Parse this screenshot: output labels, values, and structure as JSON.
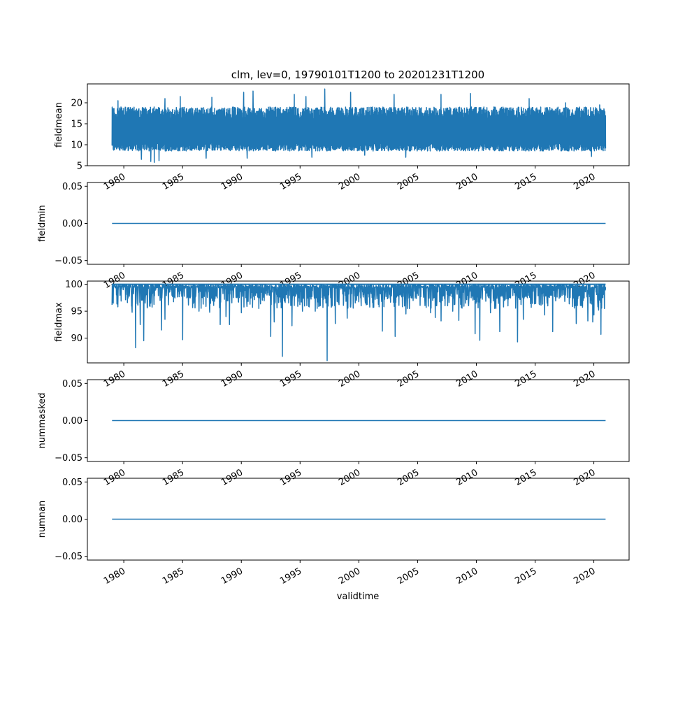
{
  "figure": {
    "title": "clm, lev=0, 19790101T1200 to 20201231T1200",
    "xlabel": "validtime",
    "line_color": "#1f77b4"
  },
  "chart_data": [
    {
      "type": "line",
      "ylabel": "fieldmean",
      "xlim": [
        1976.9,
        2023.0
      ],
      "ylim": [
        5,
        24.5
      ],
      "yticks": [
        5,
        10,
        15,
        20
      ],
      "yticklabels": [
        "5",
        "10",
        "15",
        "20"
      ],
      "series": [
        {
          "x_range": [
            1979.0,
            2021.0
          ],
          "typical_low": [
            8.5,
            10.5
          ],
          "typical_high": [
            16.0,
            19.0
          ],
          "minima": [
            {
              "x": 1981.5,
              "y": 6.5
            },
            {
              "x": 1982.3,
              "y": 6.0
            },
            {
              "x": 1982.6,
              "y": 5.8
            },
            {
              "x": 1983.0,
              "y": 6.2
            },
            {
              "x": 1987.0,
              "y": 6.8
            },
            {
              "x": 1990.5,
              "y": 6.8
            },
            {
              "x": 1996.0,
              "y": 7.0
            },
            {
              "x": 2000.5,
              "y": 7.5
            },
            {
              "x": 2004.0,
              "y": 7.0
            },
            {
              "x": 2009.5,
              "y": 6.8
            },
            {
              "x": 2014.5,
              "y": 7.0
            },
            {
              "x": 2019.8,
              "y": 7.2
            }
          ],
          "maxima": [
            {
              "x": 1979.5,
              "y": 20.5
            },
            {
              "x": 1983.5,
              "y": 21.0
            },
            {
              "x": 1984.8,
              "y": 21.5
            },
            {
              "x": 1987.5,
              "y": 21.3
            },
            {
              "x": 1990.2,
              "y": 22.5
            },
            {
              "x": 1991.0,
              "y": 22.8
            },
            {
              "x": 1994.5,
              "y": 22.0
            },
            {
              "x": 1995.5,
              "y": 21.5
            },
            {
              "x": 1997.1,
              "y": 23.3
            },
            {
              "x": 1999.3,
              "y": 22.5
            },
            {
              "x": 2003.0,
              "y": 22.0
            },
            {
              "x": 2007.0,
              "y": 22.0
            },
            {
              "x": 2009.5,
              "y": 22.2
            },
            {
              "x": 2014.5,
              "y": 21.0
            },
            {
              "x": 2017.6,
              "y": 20.0
            },
            {
              "x": 2020.5,
              "y": 19.5
            }
          ]
        }
      ]
    },
    {
      "type": "line",
      "ylabel": "fieldmin",
      "xlim": [
        1976.9,
        2023.0
      ],
      "ylim": [
        -0.055,
        0.055
      ],
      "yticks": [
        -0.05,
        0.0,
        0.05
      ],
      "yticklabels": [
        "−0.05",
        "0.00",
        "0.05"
      ],
      "series": [
        {
          "x_range": [
            1979.0,
            2021.0
          ],
          "constant": 0.0
        }
      ]
    },
    {
      "type": "line",
      "ylabel": "fieldmax",
      "xlim": [
        1976.9,
        2023.0
      ],
      "ylim": [
        85.4,
        100.6
      ],
      "yticks": [
        90,
        95,
        100
      ],
      "yticklabels": [
        "90",
        "95",
        "100"
      ],
      "series": [
        {
          "x_range": [
            1979.0,
            2021.0
          ],
          "baseline": 100.0,
          "dips": [
            {
              "x": 1979.1,
              "y": 96.5
            },
            {
              "x": 1979.5,
              "y": 95.8
            },
            {
              "x": 1980.3,
              "y": 96.6
            },
            {
              "x": 1980.7,
              "y": 94.8
            },
            {
              "x": 1981.0,
              "y": 88.2
            },
            {
              "x": 1981.4,
              "y": 92.5
            },
            {
              "x": 1981.7,
              "y": 89.5
            },
            {
              "x": 1982.3,
              "y": 96.5
            },
            {
              "x": 1983.2,
              "y": 91.5
            },
            {
              "x": 1983.5,
              "y": 93.5
            },
            {
              "x": 1985.0,
              "y": 89.7
            },
            {
              "x": 1986.4,
              "y": 95.0
            },
            {
              "x": 1987.3,
              "y": 94.8
            },
            {
              "x": 1988.2,
              "y": 92.5
            },
            {
              "x": 1988.7,
              "y": 94.0
            },
            {
              "x": 1989.0,
              "y": 92.5
            },
            {
              "x": 1990.0,
              "y": 94.7
            },
            {
              "x": 1991.5,
              "y": 95.5
            },
            {
              "x": 1992.5,
              "y": 90.3
            },
            {
              "x": 1992.8,
              "y": 93.0
            },
            {
              "x": 1993.5,
              "y": 86.6
            },
            {
              "x": 1994.3,
              "y": 92.3
            },
            {
              "x": 1995.2,
              "y": 95.0
            },
            {
              "x": 1996.3,
              "y": 95.0
            },
            {
              "x": 1997.3,
              "y": 85.8
            },
            {
              "x": 1998.0,
              "y": 92.7
            },
            {
              "x": 1999.0,
              "y": 93.7
            },
            {
              "x": 2000.2,
              "y": 96.0
            },
            {
              "x": 2001.2,
              "y": 95.7
            },
            {
              "x": 2002.0,
              "y": 91.3
            },
            {
              "x": 2003.1,
              "y": 90.3
            },
            {
              "x": 2004.0,
              "y": 94.5
            },
            {
              "x": 2006.1,
              "y": 94.7
            },
            {
              "x": 2006.5,
              "y": 93.8
            },
            {
              "x": 2007.0,
              "y": 93.2
            },
            {
              "x": 2008.0,
              "y": 95.0
            },
            {
              "x": 2008.5,
              "y": 93.3
            },
            {
              "x": 2009.9,
              "y": 90.8
            },
            {
              "x": 2010.3,
              "y": 89.6
            },
            {
              "x": 2011.2,
              "y": 94.7
            },
            {
              "x": 2012.0,
              "y": 91.2
            },
            {
              "x": 2013.5,
              "y": 89.3
            },
            {
              "x": 2014.0,
              "y": 93.5
            },
            {
              "x": 2015.8,
              "y": 94.3
            },
            {
              "x": 2016.5,
              "y": 91.2
            },
            {
              "x": 2018.5,
              "y": 92.7
            },
            {
              "x": 2019.5,
              "y": 93.2
            },
            {
              "x": 2019.9,
              "y": 93.0
            },
            {
              "x": 2020.0,
              "y": 94.3
            },
            {
              "x": 2020.4,
              "y": 95.2
            },
            {
              "x": 2020.6,
              "y": 90.7
            },
            {
              "x": 2020.9,
              "y": 95.5
            }
          ]
        }
      ]
    },
    {
      "type": "line",
      "ylabel": "nummasked",
      "xlim": [
        1976.9,
        2023.0
      ],
      "ylim": [
        -0.055,
        0.055
      ],
      "yticks": [
        -0.05,
        0.0,
        0.05
      ],
      "yticklabels": [
        "−0.05",
        "0.00",
        "0.05"
      ],
      "series": [
        {
          "x_range": [
            1979.0,
            2021.0
          ],
          "constant": 0.0
        }
      ]
    },
    {
      "type": "line",
      "ylabel": "numnan",
      "xlim": [
        1976.9,
        2023.0
      ],
      "ylim": [
        -0.055,
        0.055
      ],
      "yticks": [
        -0.05,
        0.0,
        0.05
      ],
      "yticklabels": [
        "−0.05",
        "0.00",
        "0.05"
      ],
      "series": [
        {
          "x_range": [
            1979.0,
            2021.0
          ],
          "constant": 0.0
        }
      ]
    }
  ],
  "x_axis": {
    "ticks": [
      1980,
      1985,
      1990,
      1995,
      2000,
      2005,
      2010,
      2015,
      2020
    ],
    "ticklabels": [
      "1980",
      "1985",
      "1990",
      "1995",
      "2000",
      "2005",
      "2010",
      "2015",
      "2020"
    ]
  }
}
